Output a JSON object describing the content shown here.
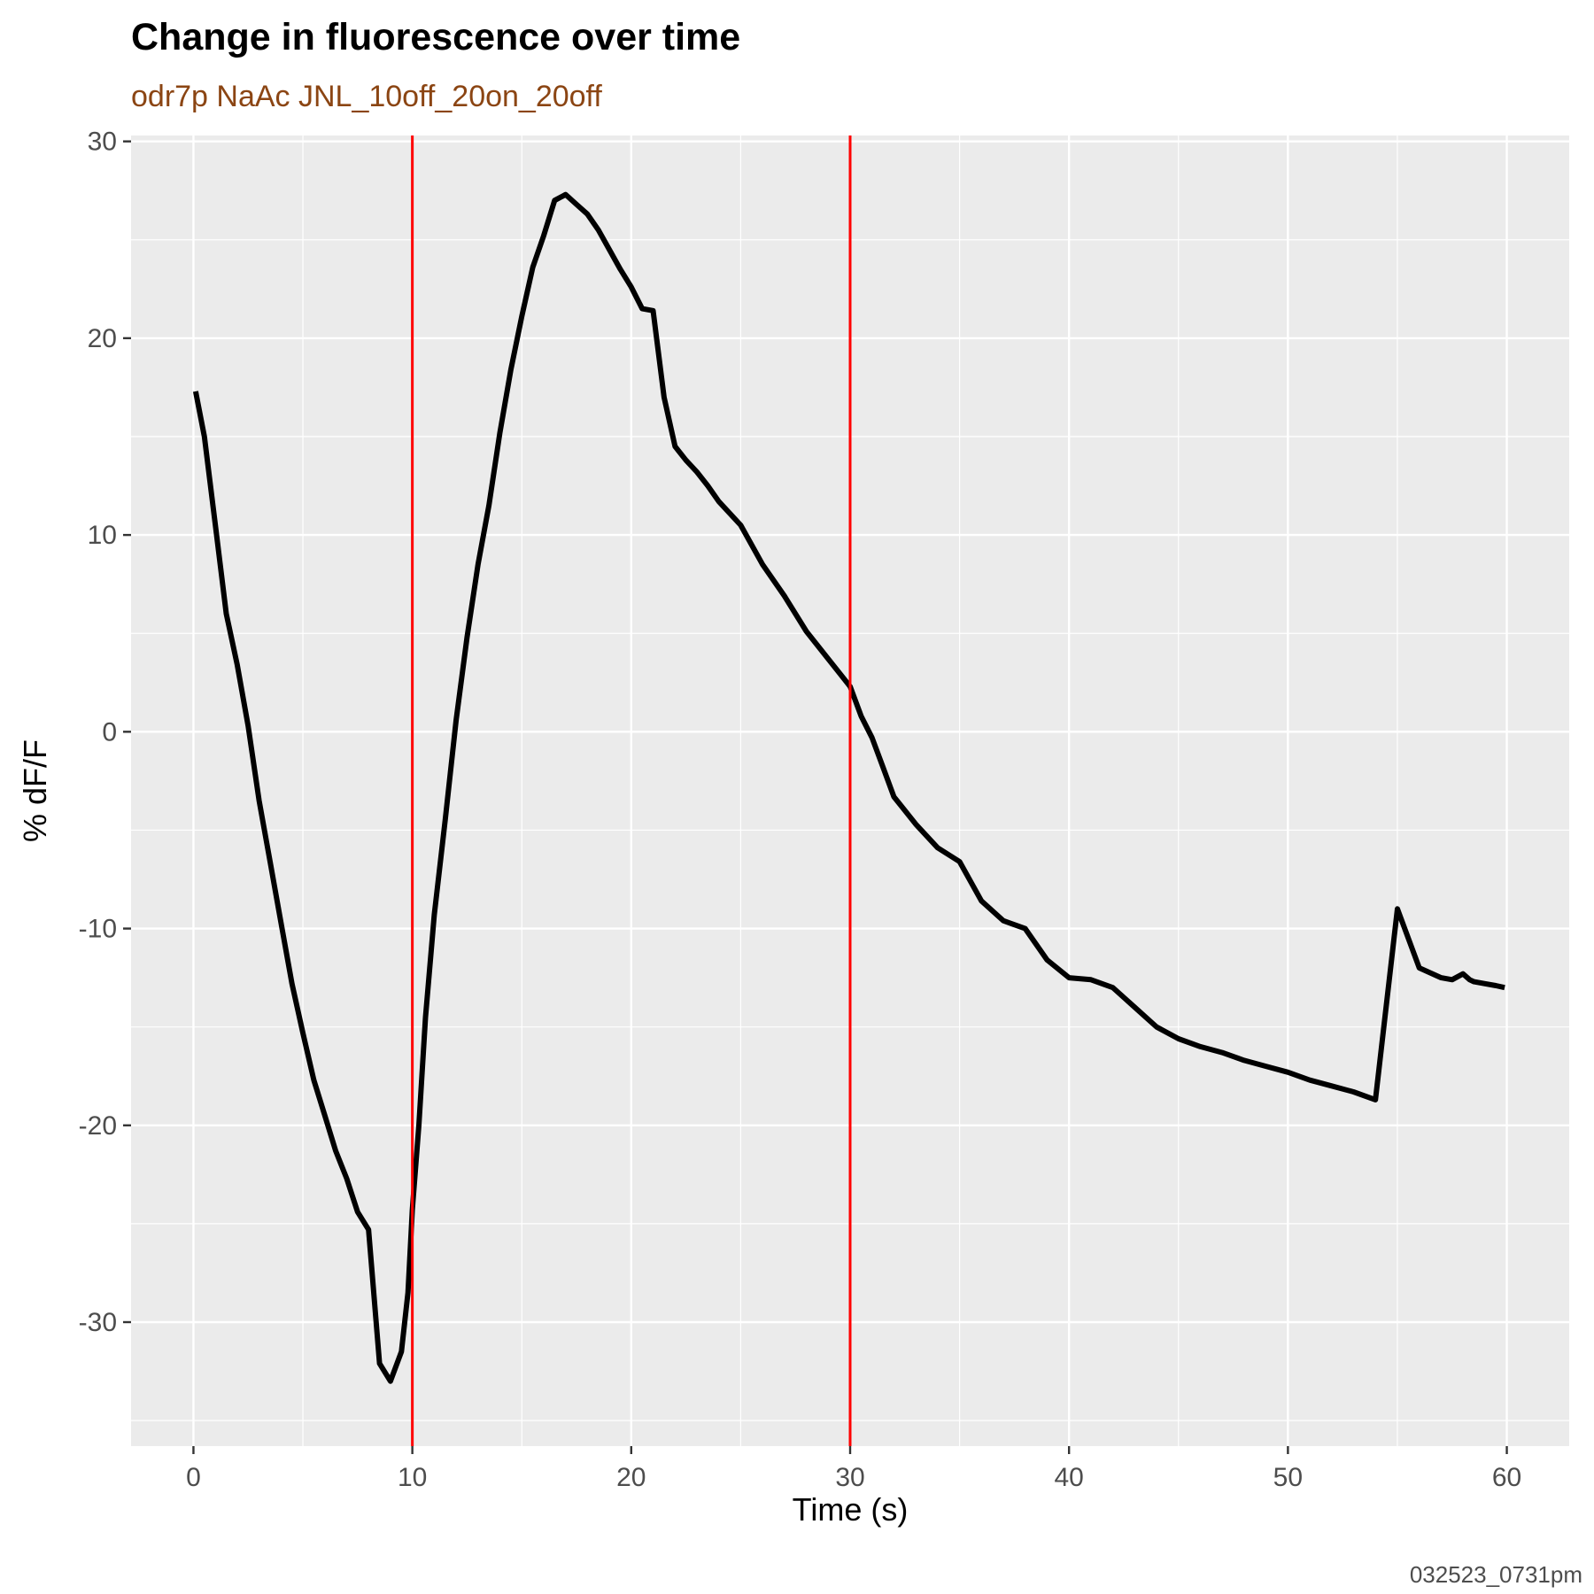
{
  "chart_data": {
    "type": "line",
    "title": "Change in fluorescence over time",
    "subtitle": "odr7p NaAc JNL_10off_20on_20off",
    "caption": "032523_0731pm",
    "xlabel": "Time (s)",
    "ylabel": "% dF/F",
    "xlim": [
      -2.85,
      62.85
    ],
    "ylim": [
      -36.3,
      30.3
    ],
    "x_ticks": [
      0,
      10,
      20,
      30,
      40,
      50,
      60
    ],
    "x_tick_labels": [
      "0",
      "10",
      "20",
      "30",
      "40",
      "50",
      "60"
    ],
    "y_ticks": [
      -30,
      -20,
      -10,
      0,
      10,
      20,
      30
    ],
    "y_tick_labels": [
      "-30",
      "-20",
      "-10",
      "0",
      "10",
      "20",
      "30"
    ],
    "grid": true,
    "legend": "none",
    "vlines": [
      10,
      30
    ],
    "colors": {
      "panel_background": "#ebebeb",
      "grid": "#ffffff",
      "line": "#000000",
      "vline": "#ff0000",
      "subtitle": "#8b4513"
    },
    "series": [
      {
        "x": [
          0.1,
          0.5,
          1.0,
          1.5,
          2.0,
          2.5,
          3.0,
          3.5,
          4.0,
          4.5,
          5.0,
          5.5,
          6.0,
          6.5,
          7.0,
          7.5,
          8.0,
          8.5,
          9.0,
          9.5,
          9.8,
          10.0,
          10.3,
          10.6,
          11.0,
          11.5,
          12.0,
          12.5,
          13.0,
          13.5,
          14.0,
          14.5,
          15.0,
          15.5,
          16.0,
          16.5,
          17.0,
          17.5,
          18.0,
          18.5,
          19.0,
          19.5,
          20.0,
          20.5,
          21.0,
          21.5,
          22.0,
          22.5,
          23.0,
          23.5,
          24.0,
          25.0,
          26.0,
          27.0,
          28.0,
          29.0,
          30.0,
          30.5,
          31.0,
          31.5,
          32.0,
          33.0,
          34.0,
          35.0,
          36.0,
          37.0,
          38.0,
          39.0,
          40.0,
          41.0,
          42.0,
          43.0,
          44.0,
          45.0,
          46.0,
          47.0,
          48.0,
          49.0,
          50.0,
          51.0,
          52.0,
          53.0,
          54.0,
          55.0,
          56.0,
          57.0,
          57.5,
          58.0,
          58.3,
          58.5,
          59.0,
          59.5,
          59.9
        ],
        "y": [
          17.3,
          15.0,
          10.5,
          6.0,
          3.4,
          0.3,
          -3.5,
          -6.6,
          -9.7,
          -12.8,
          -15.3,
          -17.7,
          -19.5,
          -21.3,
          -22.7,
          -24.4,
          -25.3,
          -32.1,
          -33.0,
          -31.5,
          -28.5,
          -24.3,
          -20.0,
          -14.5,
          -9.3,
          -4.5,
          0.6,
          4.8,
          8.5,
          11.5,
          15.2,
          18.4,
          21.1,
          23.6,
          25.2,
          27.0,
          27.3,
          26.8,
          26.3,
          25.5,
          24.5,
          23.5,
          22.6,
          21.5,
          21.4,
          17.0,
          14.5,
          13.8,
          13.2,
          12.5,
          11.7,
          10.5,
          8.5,
          6.9,
          5.1,
          3.7,
          2.3,
          0.8,
          -0.3,
          -1.8,
          -3.3,
          -4.7,
          -5.9,
          -6.6,
          -8.6,
          -9.6,
          -10.0,
          -11.6,
          -12.5,
          -12.6,
          -13.0,
          -14.0,
          -15.0,
          -15.6,
          -16.0,
          -16.3,
          -16.7,
          -17.0,
          -17.3,
          -17.7,
          -18.0,
          -18.3,
          -18.7,
          -9.0,
          -12.0,
          -12.5,
          -12.6,
          -12.3,
          -12.6,
          -12.7,
          -12.8,
          -12.9,
          -13.0
        ]
      }
    ]
  }
}
